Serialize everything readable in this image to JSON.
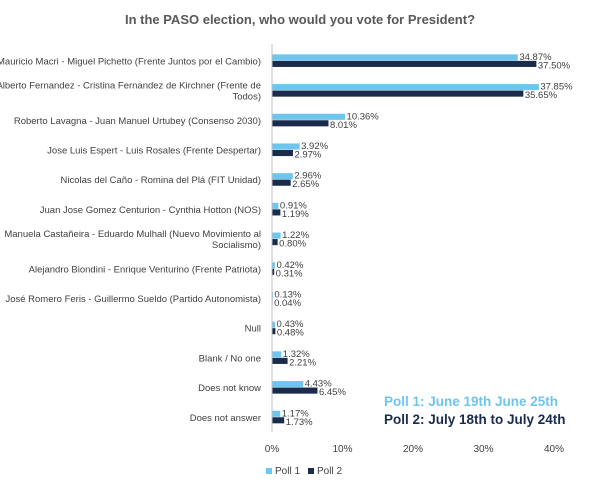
{
  "chart_data": {
    "type": "bar",
    "orientation": "horizontal",
    "title": "In the PASO election, who would you vote for President?",
    "categories": [
      [
        "Mauricio Macri - Miguel Pichetto (Frente Juntos por el Cambio)"
      ],
      [
        "Alberto Fernandez - Cristina Fernandez de Kirchner (Frente de",
        "Todos)"
      ],
      [
        "Roberto Lavagna - Juan Manuel Urtubey (Consenso 2030)"
      ],
      [
        "Jose Luis Espert - Luis Rosales (Frente Despertar)"
      ],
      [
        "Nicolas del Caño - Romina del Plá (FIT Unidad)"
      ],
      [
        "Juan Jose Gomez Centurion - Cynthia Hotton (NOS)"
      ],
      [
        "Manuela Castañeira - Eduardo Mulhall (Nuevo Movimiento al",
        "Socialismo)"
      ],
      [
        "Alejandro Biondini - Enrique Venturino (Frente Patriota)"
      ],
      [
        "José Romero Feris - Guillermo Sueldo (Partido Autonomista)"
      ],
      [
        "Null"
      ],
      [
        "Blank / No one"
      ],
      [
        "Does not know"
      ],
      [
        "Does not answer"
      ]
    ],
    "series": [
      {
        "name": "Poll 1",
        "color": "#6ec6ee",
        "values": [
          34.87,
          37.85,
          10.36,
          3.92,
          2.96,
          0.91,
          1.22,
          0.42,
          0.13,
          0.43,
          1.32,
          4.43,
          1.17
        ],
        "labels": [
          "34.87%",
          "37.85%",
          "10.36%",
          "3.92%",
          "2.96%",
          "0.91%",
          "1.22%",
          "0.42%",
          "0.13%",
          "0.43%",
          "1.32%",
          "4.43%",
          "1.17%"
        ]
      },
      {
        "name": "Poll 2",
        "color": "#1a2b4c",
        "values": [
          37.5,
          35.65,
          8.01,
          2.97,
          2.65,
          1.19,
          0.8,
          0.31,
          0.04,
          0.48,
          2.21,
          6.45,
          1.73
        ],
        "labels": [
          "37.50%",
          "35.65%",
          "8.01%",
          "2.97%",
          "2.65%",
          "1.19%",
          "0.80%",
          "0.31%",
          "0.04%",
          "0.48%",
          "2.21%",
          "6.45%",
          "1.73%"
        ]
      }
    ],
    "xlim": [
      0,
      40
    ],
    "xticks": [
      0,
      10,
      20,
      30,
      40
    ],
    "xtick_labels": [
      "0%",
      "10%",
      "20%",
      "30%",
      "40%"
    ],
    "legend": "bottom",
    "grid": false,
    "annotations": [
      "Poll 1: June 19th June 25th",
      "Poll 2: July 18th to July 24th"
    ]
  }
}
